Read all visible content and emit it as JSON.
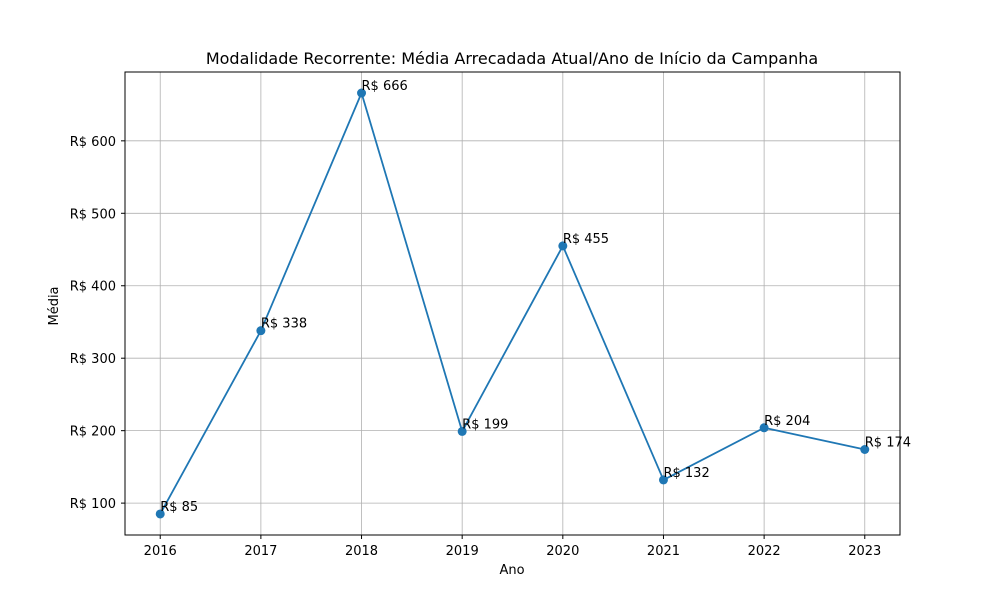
{
  "chart_data": {
    "type": "line",
    "title": "Modalidade Recorrente: Média Arrecadada Atual/Ano de Início da Campanha",
    "xlabel": "Ano",
    "ylabel": "Média",
    "x": [
      2016,
      2017,
      2018,
      2019,
      2020,
      2021,
      2022,
      2023
    ],
    "x_tick_labels": [
      "2016",
      "2017",
      "2018",
      "2019",
      "2020",
      "2021",
      "2022",
      "2023"
    ],
    "series": [
      {
        "values": [
          85,
          338,
          666,
          199,
          455,
          132,
          204,
          174
        ],
        "labels": [
          "R$ 85",
          "R$ 338",
          "R$ 666",
          "R$ 199",
          "R$ 455",
          "R$ 132",
          "R$ 204",
          "R$ 174"
        ],
        "color": "#1f77b4"
      }
    ],
    "y_ticks": [
      100,
      200,
      300,
      400,
      500,
      600
    ],
    "y_tick_labels": [
      "R$ 100",
      "R$ 200",
      "R$ 300",
      "R$ 400",
      "R$ 500",
      "R$ 600"
    ],
    "xlim": [
      2015.65,
      2023.35
    ],
    "ylim": [
      56,
      695
    ],
    "grid": true,
    "marker": "circle"
  }
}
